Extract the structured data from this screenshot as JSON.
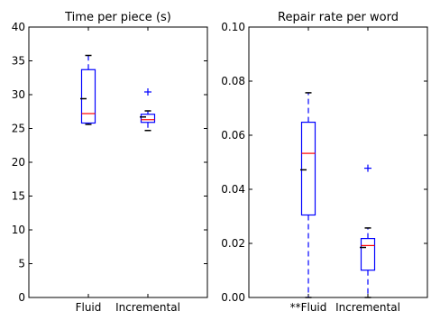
{
  "chart_data": [
    {
      "type": "box",
      "title": "Time per piece (s)",
      "xlabel": "",
      "ylabel": "",
      "ylim": [
        0,
        40
      ],
      "yticks": [
        "0",
        "5",
        "10",
        "15",
        "20",
        "25",
        "30",
        "35",
        "40"
      ],
      "categories": [
        "Fluid",
        "Incremental"
      ],
      "boxes": [
        {
          "category": "Fluid",
          "whisker_low": 25.6,
          "q1": 25.8,
          "median": 27.2,
          "q3": 33.7,
          "whisker_high": 35.8,
          "extra_ticks": [
            29.4
          ],
          "outliers": []
        },
        {
          "category": "Incremental",
          "whisker_low": 24.7,
          "q1": 25.9,
          "median": 26.3,
          "q3": 27.1,
          "whisker_high": 27.6,
          "extra_ticks": [
            26.7
          ],
          "outliers": [
            30.4
          ]
        }
      ],
      "grid": false
    },
    {
      "type": "box",
      "title": "Repair rate per word",
      "xlabel": "",
      "ylabel": "",
      "ylim": [
        0,
        0.1
      ],
      "yticks": [
        "0.00",
        "0.02",
        "0.04",
        "0.06",
        "0.08",
        "0.10"
      ],
      "categories": [
        "**Fluid",
        "Incremental"
      ],
      "boxes": [
        {
          "category": "**Fluid",
          "whisker_low": 0.0,
          "q1": 0.0305,
          "median": 0.0533,
          "q3": 0.0648,
          "whisker_high": 0.0757,
          "extra_ticks": [
            0.0472
          ],
          "outliers": []
        },
        {
          "category": "Incremental",
          "whisker_low": 0.0,
          "q1": 0.0101,
          "median": 0.0192,
          "q3": 0.0218,
          "whisker_high": 0.0257,
          "extra_ticks": [
            0.0185
          ],
          "outliers": [
            0.0478
          ]
        }
      ],
      "grid": false
    }
  ],
  "colors": {
    "box": "#0000ff",
    "median": "#ff0000",
    "cap": "#000000",
    "outlier": "#0000ff",
    "axes": "#000000"
  }
}
